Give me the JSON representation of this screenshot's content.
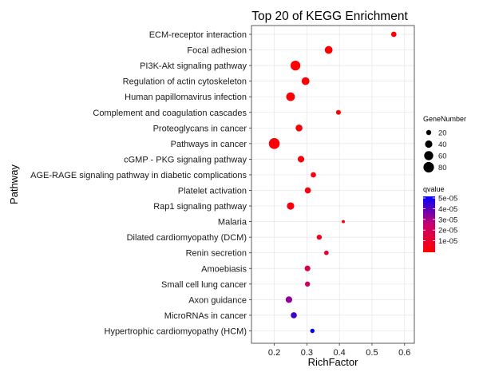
{
  "chart_data": {
    "type": "scatter",
    "title": "Top 20 of KEGG Enrichment",
    "xlabel": "RichFactor",
    "ylabel": "Pathway",
    "xlim": [
      0.13,
      0.63
    ],
    "xticks": [
      0.2,
      0.3,
      0.4,
      0.5,
      0.6
    ],
    "xtick_labels": [
      "0.2",
      "0.3",
      "0.4",
      "0.5",
      "0.6"
    ],
    "grid": true,
    "legend_placement": "right",
    "points": [
      {
        "pathway": "ECM-receptor interaction",
        "rich_factor": 0.567,
        "gene_number": 22,
        "qvalue": 1e-07
      },
      {
        "pathway": "Focal adhesion",
        "rich_factor": 0.367,
        "gene_number": 45,
        "qvalue": 3e-07
      },
      {
        "pathway": "PI3K-Akt signaling pathway",
        "rich_factor": 0.265,
        "gene_number": 70,
        "qvalue": 5e-07
      },
      {
        "pathway": "Regulation of actin cytoskeleton",
        "rich_factor": 0.296,
        "gene_number": 45,
        "qvalue": 8e-07
      },
      {
        "pathway": "Human papillomavirus infection",
        "rich_factor": 0.25,
        "gene_number": 55,
        "qvalue": 1e-06
      },
      {
        "pathway": "Complement and coagulation cascades",
        "rich_factor": 0.397,
        "gene_number": 18,
        "qvalue": 1e-06
      },
      {
        "pathway": "Proteoglycans in cancer",
        "rich_factor": 0.276,
        "gene_number": 35,
        "qvalue": 1.5e-06
      },
      {
        "pathway": "Pathways in cancer",
        "rich_factor": 0.2,
        "gene_number": 85,
        "qvalue": 1.5e-06
      },
      {
        "pathway": "cGMP - PKG signaling pathway",
        "rich_factor": 0.282,
        "gene_number": 32,
        "qvalue": 2e-06
      },
      {
        "pathway": "AGE-RAGE signaling pathway in diabetic complications",
        "rich_factor": 0.32,
        "gene_number": 22,
        "qvalue": 4e-06
      },
      {
        "pathway": "Platelet activation",
        "rich_factor": 0.303,
        "gene_number": 28,
        "qvalue": 3e-06
      },
      {
        "pathway": "Rap1 signaling pathway",
        "rich_factor": 0.25,
        "gene_number": 40,
        "qvalue": 3e-06
      },
      {
        "pathway": "Malaria",
        "rich_factor": 0.412,
        "gene_number": 8,
        "qvalue": 3e-06
      },
      {
        "pathway": "Dilated cardiomyopathy (DCM)",
        "rich_factor": 0.338,
        "gene_number": 20,
        "qvalue": 7e-06
      },
      {
        "pathway": "Renin secretion",
        "rich_factor": 0.36,
        "gene_number": 16,
        "qvalue": 1e-05
      },
      {
        "pathway": "Amoebiasis",
        "rich_factor": 0.302,
        "gene_number": 25,
        "qvalue": 1.8e-05
      },
      {
        "pathway": "Small cell lung cancer",
        "rich_factor": 0.302,
        "gene_number": 20,
        "qvalue": 2.2e-05
      },
      {
        "pathway": "Axon guidance",
        "rich_factor": 0.245,
        "gene_number": 32,
        "qvalue": 3.2e-05
      },
      {
        "pathway": "MicroRNAs in cancer",
        "rich_factor": 0.26,
        "gene_number": 28,
        "qvalue": 4.2e-05
      },
      {
        "pathway": "Hypertrophic cardiomyopathy (HCM)",
        "rich_factor": 0.317,
        "gene_number": 15,
        "qvalue": 5e-05
      }
    ],
    "size_legend": {
      "title": "GeneNumber",
      "values": [
        20,
        40,
        60,
        80
      ],
      "labels": [
        "20",
        "40",
        "60",
        "80"
      ]
    },
    "color_legend": {
      "title": "qvalue",
      "range": [
        0,
        5e-05
      ],
      "ticks": [
        5e-05,
        4e-05,
        3e-05,
        2e-05,
        1e-05
      ],
      "labels": [
        "5e-05",
        "4e-05",
        "3e-05",
        "2e-05",
        "1e-05"
      ],
      "low_color": "#ff0000",
      "high_color": "#0000ff"
    }
  }
}
